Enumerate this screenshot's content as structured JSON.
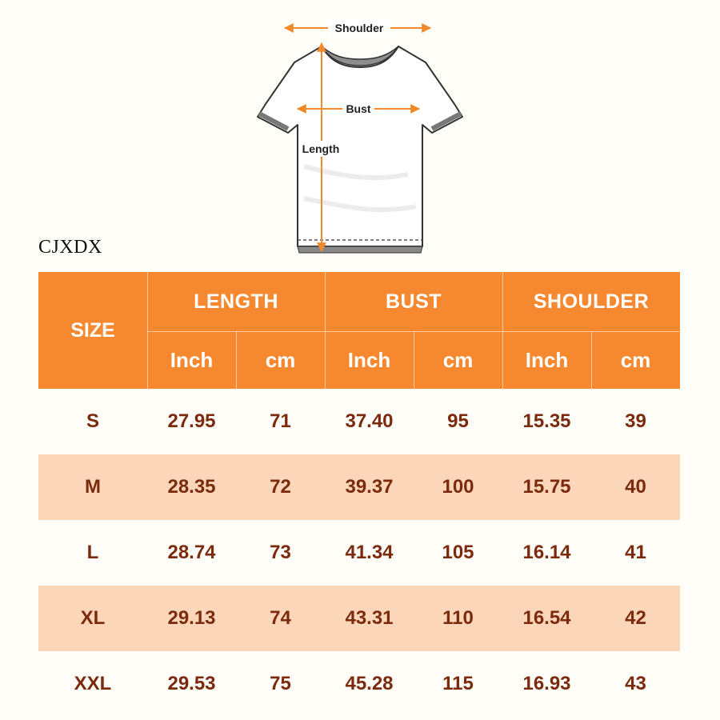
{
  "brand": "CJXDX",
  "diagram": {
    "shoulder_label": "Shoulder",
    "bust_label": "Bust",
    "length_label": "Length",
    "accent_color": "#f08a2a"
  },
  "table": {
    "header": {
      "size": "SIZE",
      "groups": [
        "LENGTH",
        "BUST",
        "SHOULDER"
      ],
      "units": [
        "Inch",
        "cm",
        "Inch",
        "cm",
        "Inch",
        "cm"
      ]
    },
    "rows": [
      {
        "size": "S",
        "values": [
          "27.95",
          "71",
          "37.40",
          "95",
          "15.35",
          "39"
        ]
      },
      {
        "size": "M",
        "values": [
          "28.35",
          "72",
          "39.37",
          "100",
          "15.75",
          "40"
        ]
      },
      {
        "size": "L",
        "values": [
          "28.74",
          "73",
          "41.34",
          "105",
          "16.14",
          "41"
        ]
      },
      {
        "size": "XL",
        "values": [
          "29.13",
          "74",
          "43.31",
          "110",
          "16.54",
          "42"
        ]
      },
      {
        "size": "XXL",
        "values": [
          "29.53",
          "75",
          "45.28",
          "115",
          "16.93",
          "43"
        ]
      }
    ],
    "header_color": "#f6892f",
    "alt_row_color": "#fcd6b9",
    "value_color": "#7c2a0d"
  }
}
